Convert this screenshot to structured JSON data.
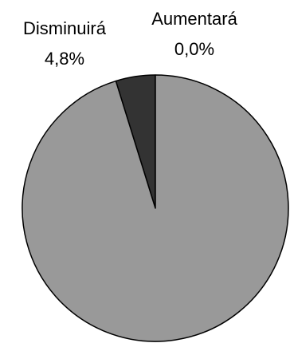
{
  "chart_data": {
    "type": "pie",
    "slices": [
      {
        "label": "Aumentará",
        "value": 0.0,
        "value_text": "0,0%"
      },
      {
        "label": "Disminuirá",
        "value": 4.8,
        "value_text": "4,8%"
      },
      {
        "label": "",
        "value": 95.2,
        "value_text": ""
      }
    ],
    "colors": {
      "aumentara": "#000000",
      "disminuira": "#333333",
      "remainder": "#999999",
      "stroke": "#000000"
    },
    "legend": "none",
    "grid": false
  }
}
